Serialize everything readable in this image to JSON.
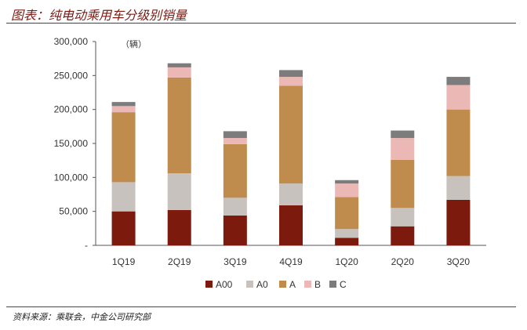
{
  "header": {
    "title": "图表：纯电动乘用车分级别销量"
  },
  "footer": {
    "source": "资料来源：乘联会，中金公司研究部"
  },
  "chart_data": {
    "type": "bar",
    "stacked": true,
    "title": "图表：纯电动乘用车分级别销量",
    "unit_label": "（辆）",
    "categories": [
      "1Q19",
      "2Q19",
      "3Q19",
      "4Q19",
      "1Q20",
      "2Q20",
      "3Q20"
    ],
    "ylim": [
      0,
      300000
    ],
    "yticks": [
      0,
      50000,
      100000,
      150000,
      200000,
      250000,
      300000
    ],
    "ytick_labels": [
      "-",
      "50,000",
      "100,000",
      "150,000",
      "200,000",
      "250,000",
      "300,000"
    ],
    "legend_position": "bottom",
    "grid": false,
    "series": [
      {
        "name": "A00",
        "color": "#7b1a0d",
        "values": [
          50000,
          52000,
          44000,
          59000,
          11000,
          28000,
          67000
        ]
      },
      {
        "name": "A0",
        "color": "#c7c2bd",
        "values": [
          43000,
          54000,
          26000,
          32000,
          13000,
          27000,
          35000
        ]
      },
      {
        "name": "A",
        "color": "#bf8c4e",
        "values": [
          103000,
          141000,
          79000,
          144000,
          47000,
          71000,
          98000
        ]
      },
      {
        "name": "B",
        "color": "#ecb8b6",
        "values": [
          9000,
          15000,
          9000,
          13000,
          20000,
          32000,
          36000
        ]
      },
      {
        "name": "C",
        "color": "#7c7c7c",
        "values": [
          6000,
          6000,
          10000,
          10000,
          5000,
          11000,
          12000
        ]
      }
    ]
  }
}
